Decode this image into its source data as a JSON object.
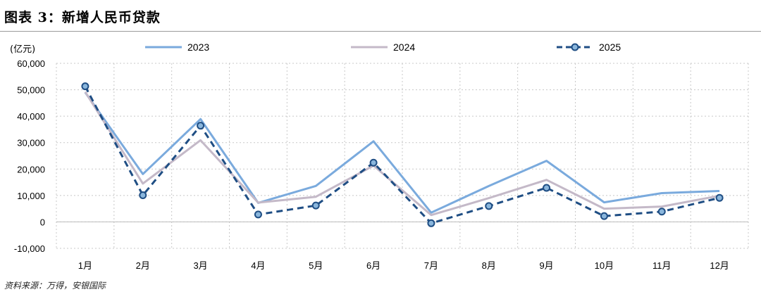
{
  "header": {
    "title": "图表 3：新增人民币贷款"
  },
  "footer": {
    "source": "资料来源：万得，安银国际"
  },
  "colors": {
    "s2023": "#7aaadd",
    "s2024": "#c4b9c8",
    "s2025": "#1f4e84",
    "marker_fill": "#8ab6dc",
    "grid": "#c8c8c8"
  },
  "chart_data": {
    "type": "line",
    "unit_label": "(亿元)",
    "categories": [
      "1月",
      "2月",
      "3月",
      "4月",
      "5月",
      "6月",
      "7月",
      "8月",
      "9月",
      "10月",
      "11月",
      "12月"
    ],
    "series": [
      {
        "name": "2023",
        "values": [
          49000,
          18100,
          38900,
          7200,
          13600,
          30500,
          3500,
          13600,
          23100,
          7400,
          10900,
          11700
        ]
      },
      {
        "name": "2024",
        "values": [
          49200,
          14500,
          30900,
          7300,
          9500,
          21300,
          2600,
          9000,
          15900,
          5000,
          5800,
          9900
        ]
      },
      {
        "name": "2025",
        "values": [
          51300,
          10100,
          36400,
          2800,
          6200,
          22400,
          -500,
          6000,
          12900,
          2200,
          3900,
          9100
        ]
      }
    ],
    "ylim": [
      -10000,
      60000
    ],
    "yticks": [
      -10000,
      0,
      10000,
      20000,
      30000,
      40000,
      50000,
      60000
    ],
    "ytick_labels": [
      "-10,000",
      "0",
      "10,000",
      "20,000",
      "30,000",
      "40,000",
      "50,000",
      "60,000"
    ],
    "grid": true,
    "legend_position": "top"
  }
}
